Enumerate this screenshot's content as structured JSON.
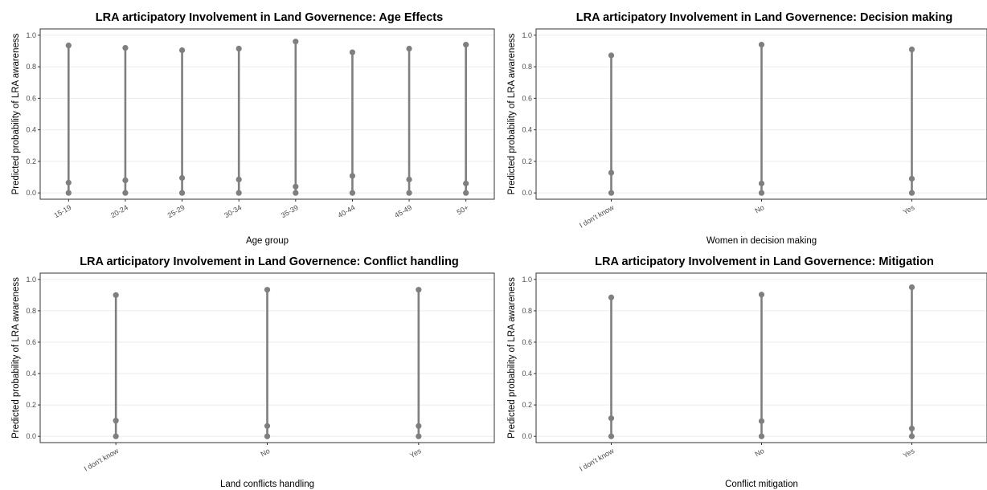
{
  "chart_data": [
    {
      "type": "scatter",
      "title": "LRA articipatory Involvement in Land Governence: Age Effects",
      "xlabel": "Age group",
      "ylabel": "Predicted probability of LRA awareness",
      "ylim": [
        -0.04,
        1.04
      ],
      "yticks": [
        "0.0",
        "0.2",
        "0.4",
        "0.6",
        "0.8",
        "1.0"
      ],
      "grid": true,
      "categories": [
        "15-19",
        "20-24",
        "25-29",
        "30-34",
        "35-39",
        "40-44",
        "45-49",
        "50+"
      ],
      "points": [
        [
          0.0,
          0.065,
          0.935
        ],
        [
          0.0,
          0.08,
          0.92
        ],
        [
          0.0,
          0.095,
          0.905
        ],
        [
          0.0,
          0.085,
          0.915
        ],
        [
          0.0,
          0.04,
          0.96
        ],
        [
          0.0,
          0.108,
          0.892
        ],
        [
          0.0,
          0.085,
          0.915
        ],
        [
          0.0,
          0.06,
          0.94
        ]
      ],
      "color": "#7f7f7f"
    },
    {
      "type": "scatter",
      "title": "LRA articipatory Involvement in Land Governence: Decision making",
      "xlabel": "Women in decision making",
      "ylabel": "Predicted probability of LRA awareness",
      "ylim": [
        -0.04,
        1.04
      ],
      "yticks": [
        "0.0",
        "0.2",
        "0.4",
        "0.6",
        "0.8",
        "1.0"
      ],
      "grid": true,
      "categories": [
        "I don't know",
        "No",
        "Yes"
      ],
      "points": [
        [
          0.0,
          0.128,
          0.872
        ],
        [
          0.0,
          0.06,
          0.94
        ],
        [
          0.0,
          0.09,
          0.91
        ]
      ],
      "color": "#7f7f7f"
    },
    {
      "type": "scatter",
      "title": "LRA articipatory Involvement in Land Governence: Conflict handling",
      "xlabel": "Land conflicts handling",
      "ylabel": "Predicted probability of LRA awareness",
      "ylim": [
        -0.04,
        1.04
      ],
      "yticks": [
        "0.0",
        "0.2",
        "0.4",
        "0.6",
        "0.8",
        "1.0"
      ],
      "grid": true,
      "categories": [
        "I don't know",
        "No",
        "Yes"
      ],
      "points": [
        [
          0.0,
          0.1,
          0.9
        ],
        [
          0.0,
          0.066,
          0.934
        ],
        [
          0.0,
          0.066,
          0.934
        ]
      ],
      "color": "#7f7f7f"
    },
    {
      "type": "scatter",
      "title": "LRA articipatory Involvement in Land Governence: Mitigation",
      "xlabel": "Conflict mitigation",
      "ylabel": "Predicted probability of LRA awareness",
      "ylim": [
        -0.04,
        1.04
      ],
      "yticks": [
        "0.0",
        "0.2",
        "0.4",
        "0.6",
        "0.8",
        "1.0"
      ],
      "grid": true,
      "categories": [
        "I don't know",
        "No",
        "Yes"
      ],
      "points": [
        [
          0.0,
          0.115,
          0.885
        ],
        [
          0.0,
          0.097,
          0.903
        ],
        [
          0.0,
          0.05,
          0.95
        ]
      ],
      "color": "#7f7f7f"
    }
  ]
}
